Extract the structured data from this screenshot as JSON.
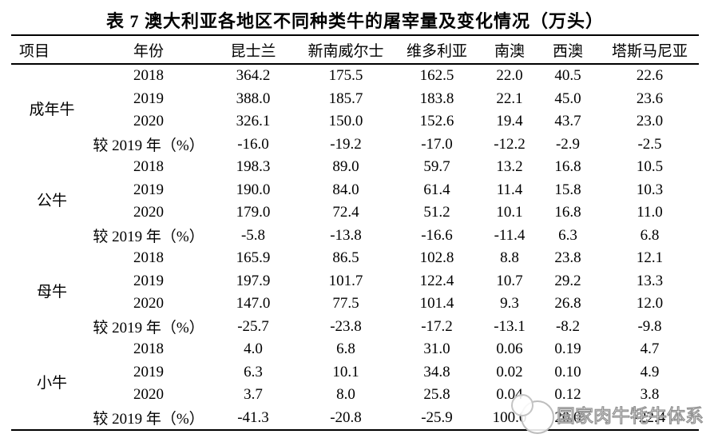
{
  "title": "表 7 澳大利亚各地区不同种类牛的屠宰量及变化情况（万头）",
  "colors": {
    "text": "#000000",
    "rule": "#000000",
    "watermark_outline": "#8f8f8f"
  },
  "table": {
    "columns": [
      "项目",
      "年份",
      "昆士兰",
      "新南威尔士",
      "维多利亚",
      "南澳",
      "西澳",
      "塔斯马尼亚"
    ],
    "groups": [
      {
        "item": "成年牛",
        "rows": [
          {
            "year": "2018",
            "values": [
              "364.2",
              "175.5",
              "162.5",
              "22.0",
              "40.5",
              "22.6"
            ]
          },
          {
            "year": "2019",
            "values": [
              "388.0",
              "185.7",
              "183.8",
              "22.1",
              "45.0",
              "23.6"
            ]
          },
          {
            "year": "2020",
            "values": [
              "326.1",
              "150.0",
              "152.6",
              "19.4",
              "43.7",
              "23.0"
            ]
          },
          {
            "year": "较 2019 年（%）",
            "values": [
              "-16.0",
              "-19.2",
              "-17.0",
              "-12.2",
              "-2.9",
              "-2.5"
            ]
          }
        ]
      },
      {
        "item": "公牛",
        "rows": [
          {
            "year": "2018",
            "values": [
              "198.3",
              "89.0",
              "59.7",
              "13.2",
              "16.8",
              "10.5"
            ]
          },
          {
            "year": "2019",
            "values": [
              "190.0",
              "84.0",
              "61.4",
              "11.4",
              "15.8",
              "10.3"
            ]
          },
          {
            "year": "2020",
            "values": [
              "179.0",
              "72.4",
              "51.2",
              "10.1",
              "16.8",
              "11.0"
            ]
          },
          {
            "year": "较 2019 年（%）",
            "values": [
              "-5.8",
              "-13.8",
              "-16.6",
              "-11.4",
              "6.3",
              "6.8"
            ]
          }
        ]
      },
      {
        "item": "母牛",
        "rows": [
          {
            "year": "2018",
            "values": [
              "165.9",
              "86.5",
              "102.8",
              "8.8",
              "23.8",
              "12.1"
            ]
          },
          {
            "year": "2019",
            "values": [
              "197.9",
              "101.7",
              "122.4",
              "10.7",
              "29.2",
              "13.3"
            ]
          },
          {
            "year": "2020",
            "values": [
              "147.0",
              "77.5",
              "101.4",
              "9.3",
              "26.8",
              "12.0"
            ]
          },
          {
            "year": "较 2019 年（%）",
            "values": [
              "-25.7",
              "-23.8",
              "-17.2",
              "-13.1",
              "-8.2",
              "-9.8"
            ]
          }
        ]
      },
      {
        "item": "小牛",
        "rows": [
          {
            "year": "2018",
            "values": [
              "4.0",
              "6.8",
              "31.0",
              "0.06",
              "0.19",
              "4.7"
            ]
          },
          {
            "year": "2019",
            "values": [
              "6.3",
              "10.1",
              "34.8",
              "0.02",
              "0.10",
              "4.9"
            ]
          },
          {
            "year": "2020",
            "values": [
              "3.7",
              "8.0",
              "25.8",
              "0.04",
              "0.12",
              "3.8"
            ]
          },
          {
            "year": "较 2019 年（%）",
            "values": [
              "-41.3",
              "-20.8",
              "-25.9",
              "100.0",
              "20.0",
              "-22.4"
            ]
          }
        ]
      }
    ]
  },
  "watermark": {
    "text": "国家肉牛牦牛体系",
    "logo": "cattle-logo"
  }
}
